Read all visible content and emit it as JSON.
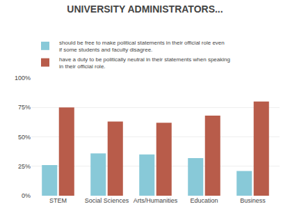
{
  "chart_data": {
    "type": "bar",
    "title": "UNIVERSITY ADMINISTRATORS...",
    "categories": [
      "STEM",
      "Social Sciences",
      "Arts/Humanities",
      "Education",
      "Business"
    ],
    "series": [
      {
        "name": "should be free to make political statements in their official role even if some students and faculty disagree.",
        "color": "#88c9d8",
        "values": [
          26,
          36,
          35,
          32,
          21
        ]
      },
      {
        "name": "have a duty to be politically neutral in their statements when speaking in their official role.",
        "color": "#b85c4a",
        "values": [
          75,
          63,
          62,
          68,
          80
        ]
      }
    ],
    "ylim": [
      0,
      100
    ],
    "yticks": [
      {
        "value": 0,
        "label": "0%"
      },
      {
        "value": 25,
        "label": "25%"
      },
      {
        "value": 50,
        "label": "50%"
      },
      {
        "value": 75,
        "label": "75%"
      },
      {
        "value": 100,
        "label": "100%"
      }
    ],
    "grid": true,
    "legend": "upper left"
  }
}
